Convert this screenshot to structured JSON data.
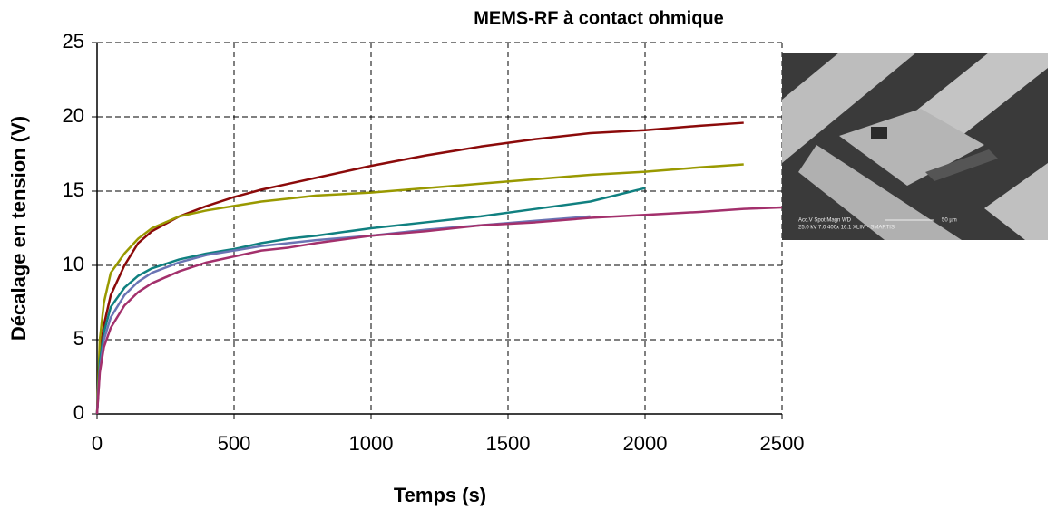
{
  "chart_data": {
    "type": "line",
    "title": "MEMS-RF à contact ohmique",
    "x_label": "Temps (s)",
    "y_label": "Décalage en tension (V)",
    "x": [
      0,
      10,
      25,
      50,
      100,
      150,
      200,
      300,
      400,
      500,
      600,
      700,
      800,
      1000,
      1200,
      1400,
      1600,
      1800,
      2000,
      2200,
      2360,
      2500
    ],
    "series": [
      {
        "color": "#8b0a0a",
        "values": [
          0,
          4,
          6,
          8,
          10,
          11.5,
          12.3,
          13.3,
          14,
          14.6,
          15.1,
          15.5,
          15.9,
          16.7,
          17.4,
          18,
          18.5,
          18.9,
          19.1,
          19.4,
          19.6,
          null
        ]
      },
      {
        "color": "#999900",
        "values": [
          0,
          5,
          7.5,
          9.5,
          10.8,
          11.8,
          12.5,
          13.3,
          13.7,
          14,
          14.3,
          14.5,
          14.7,
          14.9,
          15.2,
          15.5,
          15.8,
          16.1,
          16.3,
          16.6,
          16.8,
          null
        ]
      },
      {
        "color": "#108080",
        "values": [
          0,
          3.5,
          5.5,
          7.2,
          8.5,
          9.3,
          9.8,
          10.4,
          10.8,
          11.1,
          11.5,
          11.8,
          12,
          12.5,
          12.9,
          13.3,
          13.8,
          14.3,
          15.2,
          null,
          null,
          null
        ]
      },
      {
        "color": "#6a74b4",
        "values": [
          0,
          3,
          5,
          6.5,
          8,
          8.9,
          9.5,
          10.2,
          10.7,
          11,
          11.3,
          11.5,
          11.7,
          12,
          12.4,
          12.7,
          13,
          13.3,
          null,
          null,
          null,
          null
        ]
      },
      {
        "color": "#a3306c",
        "values": [
          0,
          2.8,
          4.5,
          5.8,
          7.3,
          8.2,
          8.8,
          9.6,
          10.2,
          10.6,
          11,
          11.2,
          11.5,
          12,
          12.3,
          12.7,
          12.9,
          13.2,
          13.4,
          13.6,
          13.8,
          13.9
        ]
      }
    ],
    "xlim": [
      0,
      2500
    ],
    "xticks": [
      0,
      500,
      1000,
      1500,
      2000,
      2500
    ],
    "ylim": [
      0,
      25
    ],
    "yticks": [
      0,
      5,
      10,
      15,
      20,
      25
    ],
    "grid": true
  },
  "inset": {
    "line1": "Acc.V  Spot Magn     WD",
    "line2": "25.0 kV 7.0   400x     16.1  XLIM - SMARTIS",
    "scale": "50 µm"
  }
}
